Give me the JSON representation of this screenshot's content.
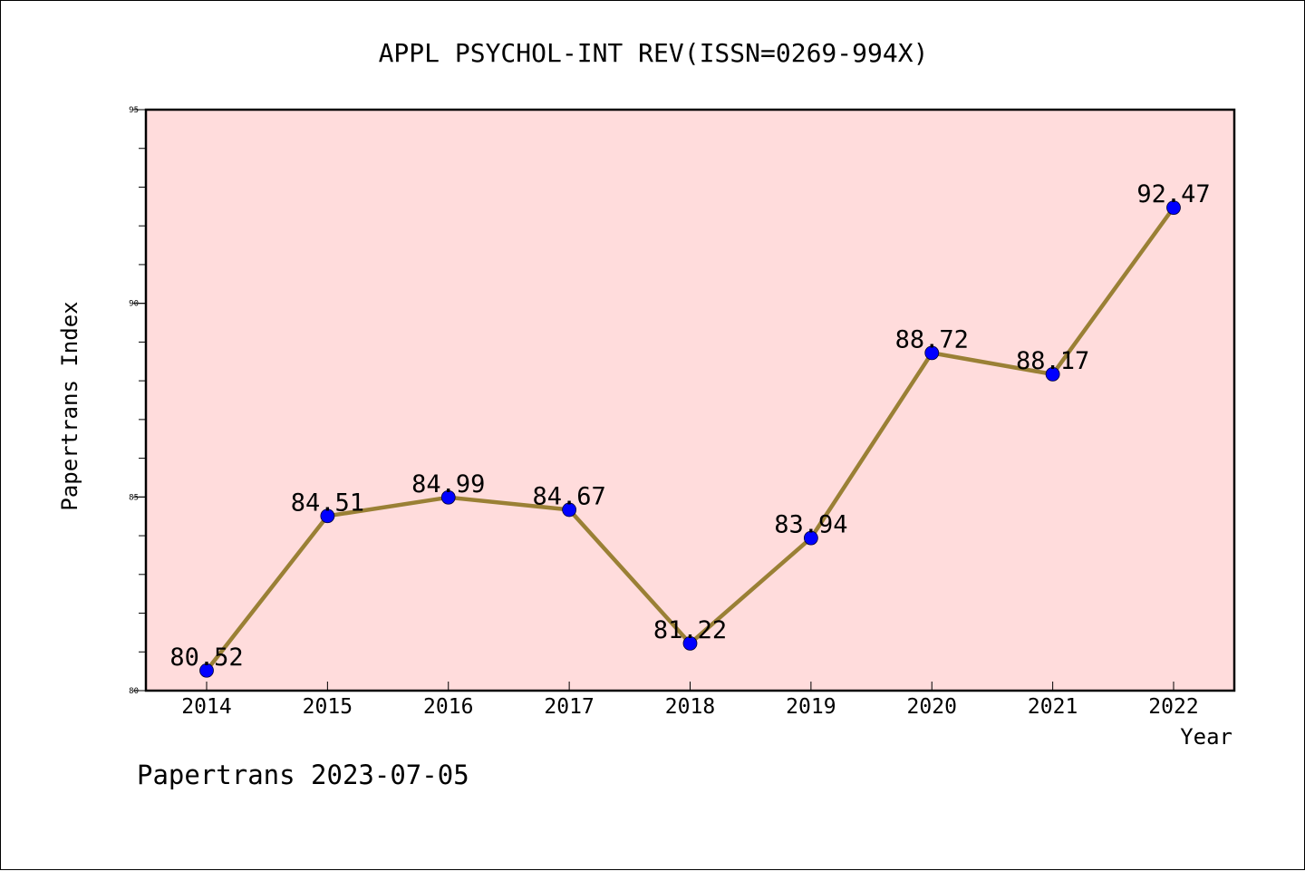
{
  "chart_data": {
    "type": "line",
    "title": "APPL PSYCHOL-INT REV(ISSN=0269-994X)",
    "xlabel": "Year",
    "ylabel": "Papertrans Index",
    "x": [
      2014,
      2015,
      2016,
      2017,
      2018,
      2019,
      2020,
      2021,
      2022
    ],
    "x_tick_labels": [
      "2014",
      "2015",
      "2016",
      "2017",
      "2018",
      "2019",
      "2020",
      "2021",
      "2022"
    ],
    "y_tick_labels": [
      "80",
      "85",
      "90",
      "95"
    ],
    "y_ticks": [
      80,
      85,
      90,
      95
    ],
    "ylim": [
      80,
      95
    ],
    "series": [
      {
        "values": [
          80.52,
          84.51,
          84.99,
          84.67,
          81.22,
          83.94,
          88.72,
          88.17,
          92.47
        ],
        "labels": [
          "80.52",
          "84.51",
          "84.99",
          "84.67",
          "81.22",
          "83.94",
          "88.72",
          "88.17",
          "92.47"
        ]
      }
    ],
    "grid": false,
    "colors": {
      "plot_background": "#ffdcdc",
      "line": "#9a8035",
      "marker": "#0000ff"
    }
  },
  "footer": {
    "watermark": "Papertrans 2023-07-05"
  }
}
